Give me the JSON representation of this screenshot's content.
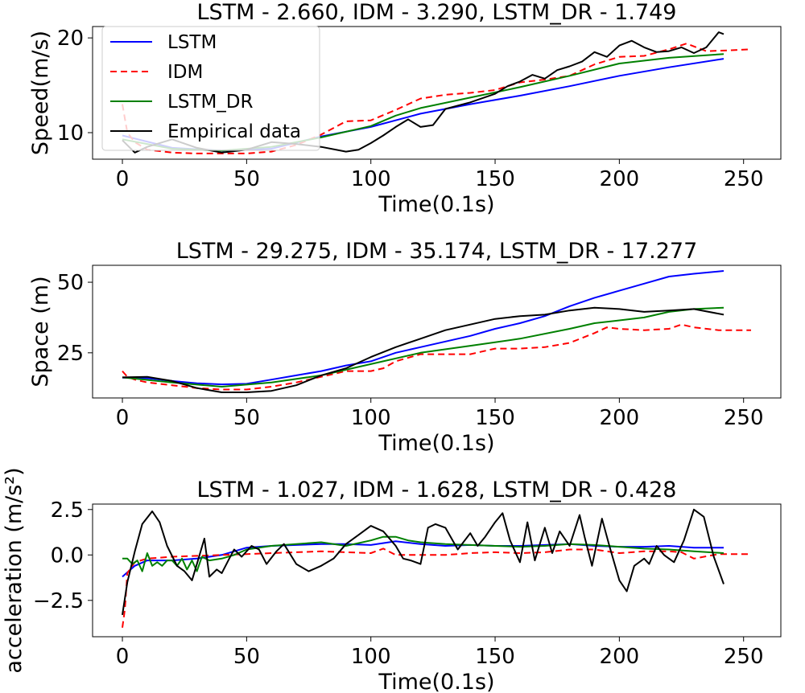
{
  "chart_data": [
    {
      "type": "line",
      "title": "LSTM - 2.660,  IDM - 3.290,  LSTM_DR - 1.749",
      "xlabel": "Time(0.1s)",
      "ylabel": "Speed(m/s)",
      "xlim": [
        -12,
        265
      ],
      "ylim": [
        7.2,
        21.2
      ],
      "xticks": [
        0,
        50,
        100,
        150,
        200,
        250
      ],
      "yticks": [
        10,
        20
      ],
      "legend": "upper-left",
      "series": [
        {
          "name": "LSTM",
          "color": "#0000ff",
          "dash": "",
          "x": [
            0,
            20,
            40,
            60,
            80,
            100,
            120,
            140,
            160,
            180,
            200,
            220,
            242
          ],
          "y": [
            9.7,
            8.4,
            8.1,
            8.3,
            9.6,
            10.6,
            12.0,
            13.0,
            13.9,
            14.9,
            16.0,
            16.9,
            17.8
          ]
        },
        {
          "name": "IDM",
          "color": "#ff0000",
          "dash": "8,5",
          "x": [
            0,
            2,
            5,
            10,
            20,
            30,
            40,
            50,
            60,
            70,
            80,
            90,
            100,
            110,
            120,
            130,
            140,
            150,
            160,
            170,
            180,
            190,
            200,
            210,
            220,
            227,
            235,
            245,
            253
          ],
          "y": [
            13.0,
            10.0,
            9.0,
            8.2,
            7.9,
            7.8,
            7.8,
            7.8,
            8.0,
            8.7,
            9.8,
            11.2,
            11.3,
            12.4,
            13.6,
            14.0,
            14.2,
            14.5,
            15.3,
            15.6,
            16.0,
            17.2,
            18.0,
            18.1,
            18.8,
            19.4,
            18.6,
            18.7,
            18.8
          ]
        },
        {
          "name": "LSTM_DR",
          "color": "#008000",
          "dash": "",
          "x": [
            0,
            20,
            40,
            60,
            80,
            100,
            110,
            120,
            140,
            160,
            180,
            200,
            220,
            242
          ],
          "y": [
            9.3,
            8.3,
            8.1,
            8.5,
            9.5,
            10.7,
            11.8,
            12.6,
            13.7,
            14.8,
            16.0,
            17.3,
            17.9,
            18.3
          ]
        },
        {
          "name": "Empirical data",
          "color": "#000000",
          "dash": "",
          "x": [
            0,
            5,
            10,
            20,
            30,
            40,
            50,
            60,
            70,
            80,
            90,
            95,
            100,
            105,
            110,
            115,
            120,
            125,
            130,
            140,
            150,
            155,
            160,
            165,
            170,
            175,
            180,
            185,
            190,
            195,
            200,
            205,
            210,
            215,
            220,
            225,
            230,
            235,
            240,
            242
          ],
          "y": [
            9.2,
            7.9,
            8.5,
            9.3,
            8.4,
            7.9,
            8.2,
            9.0,
            8.8,
            8.5,
            8.0,
            8.2,
            8.9,
            9.7,
            10.6,
            11.4,
            10.6,
            10.8,
            12.5,
            13.2,
            14.1,
            14.9,
            15.4,
            16.1,
            15.7,
            16.6,
            17.0,
            17.5,
            18.5,
            18.0,
            19.2,
            19.7,
            19.0,
            18.5,
            18.6,
            19.0,
            18.4,
            19.0,
            20.6,
            20.4
          ]
        }
      ]
    },
    {
      "type": "line",
      "title": "LSTM - 29.275,  IDM - 35.174,  LSTM_DR - 17.277",
      "xlabel": "Time(0.1s)",
      "ylabel": "Space (m)",
      "xlim": [
        -12,
        265
      ],
      "ylim": [
        9,
        56
      ],
      "xticks": [
        0,
        50,
        100,
        150,
        200,
        250
      ],
      "yticks": [
        25,
        50
      ],
      "series": [
        {
          "name": "LSTM",
          "color": "#0000ff",
          "dash": "",
          "x": [
            0,
            10,
            20,
            30,
            40,
            50,
            60,
            70,
            80,
            90,
            100,
            110,
            120,
            130,
            140,
            150,
            160,
            170,
            180,
            190,
            200,
            210,
            220,
            230,
            242
          ],
          "y": [
            16.2,
            16.0,
            15.0,
            14.2,
            13.8,
            14.0,
            15.5,
            17.0,
            18.5,
            20.5,
            22.0,
            25.0,
            27.0,
            29.0,
            31.0,
            33.5,
            35.5,
            38.0,
            41.5,
            44.5,
            47.0,
            49.5,
            52.0,
            53.0,
            54.0
          ]
        },
        {
          "name": "IDM",
          "color": "#ff0000",
          "dash": "8,5",
          "x": [
            0,
            2,
            5,
            10,
            20,
            30,
            40,
            50,
            60,
            70,
            80,
            90,
            100,
            105,
            110,
            120,
            130,
            140,
            150,
            160,
            170,
            180,
            190,
            195,
            200,
            210,
            220,
            225,
            230,
            240,
            253
          ],
          "y": [
            18.5,
            16.5,
            15.5,
            14.5,
            13.5,
            12.5,
            12.0,
            12.0,
            13.0,
            14.5,
            16.5,
            18.5,
            18.5,
            19.5,
            22.0,
            24.5,
            24.5,
            24.5,
            26.5,
            26.5,
            27.0,
            28.5,
            32.0,
            34.0,
            33.5,
            33.0,
            33.5,
            35.0,
            34.0,
            33.0,
            33.0
          ]
        },
        {
          "name": "LSTM_DR",
          "color": "#008000",
          "dash": "",
          "x": [
            0,
            20,
            40,
            60,
            80,
            100,
            120,
            140,
            160,
            180,
            190,
            200,
            210,
            220,
            230,
            242
          ],
          "y": [
            16.3,
            14.5,
            13.0,
            14.5,
            17.0,
            21.0,
            25.0,
            27.5,
            30.0,
            33.5,
            35.5,
            36.5,
            37.5,
            39.5,
            40.5,
            41.0
          ]
        },
        {
          "name": "Empirical data",
          "color": "#000000",
          "dash": "",
          "x": [
            0,
            10,
            20,
            30,
            40,
            50,
            60,
            70,
            80,
            90,
            100,
            110,
            120,
            130,
            140,
            150,
            160,
            170,
            180,
            190,
            200,
            210,
            220,
            230,
            242
          ],
          "y": [
            16.3,
            16.5,
            15.0,
            12.5,
            11.0,
            11.0,
            11.5,
            13.5,
            17.0,
            19.5,
            23.5,
            27.0,
            30.0,
            33.0,
            35.0,
            37.0,
            38.0,
            38.5,
            40.0,
            41.0,
            40.5,
            39.5,
            40.0,
            40.5,
            38.5
          ]
        }
      ]
    },
    {
      "type": "line",
      "title": "LSTM - 1.027,  IDM - 1.628,  LSTM_DR - 0.428",
      "xlabel": "Time(0.1s)",
      "ylabel": "acceleration (m/s²)",
      "xlim": [
        -12,
        265
      ],
      "ylim": [
        -4.5,
        2.8
      ],
      "xticks": [
        0,
        50,
        100,
        150,
        200,
        250
      ],
      "yticks": [
        2.5,
        0.0,
        -2.5
      ],
      "ytick_labels": [
        "2.5",
        "0.0",
        "−2.5"
      ],
      "series": [
        {
          "name": "LSTM",
          "color": "#0000ff",
          "dash": "",
          "x": [
            0,
            5,
            10,
            20,
            30,
            40,
            50,
            60,
            70,
            80,
            90,
            100,
            110,
            120,
            130,
            140,
            150,
            160,
            170,
            180,
            190,
            200,
            210,
            220,
            230,
            242
          ],
          "y": [
            -1.2,
            -0.6,
            -0.3,
            -0.3,
            -0.2,
            0.0,
            0.4,
            0.5,
            0.55,
            0.6,
            0.6,
            0.55,
            0.75,
            0.6,
            0.5,
            0.55,
            0.5,
            0.5,
            0.55,
            0.6,
            0.5,
            0.45,
            0.45,
            0.5,
            0.4,
            0.4
          ]
        },
        {
          "name": "IDM",
          "color": "#ff0000",
          "dash": "8,5",
          "x": [
            0,
            1,
            2,
            5,
            10,
            20,
            30,
            40,
            50,
            60,
            70,
            80,
            90,
            100,
            105,
            110,
            120,
            130,
            140,
            150,
            160,
            170,
            180,
            190,
            200,
            210,
            220,
            225,
            230,
            240,
            253
          ],
          "y": [
            -4.0,
            -3.0,
            -1.0,
            -0.4,
            -0.2,
            -0.1,
            -0.05,
            0.0,
            0.05,
            0.1,
            0.15,
            0.2,
            0.15,
            0.1,
            0.35,
            0.0,
            0.0,
            0.0,
            0.1,
            0.15,
            0.1,
            0.15,
            0.3,
            0.3,
            0.1,
            0.2,
            0.2,
            0.15,
            -0.2,
            0.05,
            0.05
          ]
        },
        {
          "name": "LSTM_DR",
          "color": "#008000",
          "dash": "",
          "x": [
            0,
            2,
            4,
            6,
            8,
            10,
            12,
            14,
            16,
            18,
            20,
            22,
            24,
            26,
            28,
            30,
            32,
            35,
            40,
            45,
            50,
            55,
            60,
            70,
            80,
            90,
            100,
            105,
            110,
            115,
            120,
            130,
            140,
            150,
            160,
            170,
            180,
            190,
            200,
            210,
            220,
            230,
            242
          ],
          "y": [
            -0.2,
            -0.2,
            -0.5,
            -0.3,
            -0.9,
            0.1,
            -0.6,
            -0.4,
            -0.6,
            -0.3,
            -0.3,
            -0.6,
            -0.2,
            -0.8,
            -0.3,
            -0.9,
            -0.1,
            -0.3,
            -0.2,
            0.0,
            0.3,
            0.4,
            0.5,
            0.6,
            0.7,
            0.5,
            0.8,
            1.0,
            1.0,
            0.8,
            0.7,
            0.6,
            0.55,
            0.5,
            0.45,
            0.5,
            0.6,
            0.55,
            0.45,
            0.35,
            0.3,
            0.2,
            0.1
          ]
        },
        {
          "name": "Empirical data",
          "color": "#000000",
          "dash": "",
          "x": [
            0,
            2,
            5,
            8,
            12,
            15,
            18,
            22,
            25,
            28,
            30,
            33,
            35,
            38,
            40,
            43,
            45,
            48,
            52,
            55,
            58,
            62,
            65,
            70,
            75,
            80,
            85,
            90,
            95,
            100,
            105,
            110,
            113,
            116,
            120,
            123,
            126,
            130,
            135,
            140,
            143,
            146,
            150,
            153,
            156,
            160,
            163,
            166,
            170,
            173,
            176,
            180,
            184,
            186,
            189,
            193,
            196,
            200,
            203,
            206,
            210,
            212,
            215,
            218,
            222,
            226,
            230,
            234,
            238,
            242
          ],
          "y": [
            -3.3,
            -1.5,
            0.2,
            1.7,
            2.4,
            1.8,
            0.5,
            -0.6,
            -0.9,
            -1.4,
            -0.5,
            0.9,
            -1.2,
            -0.8,
            -1.0,
            -0.2,
            0.3,
            -0.1,
            0.5,
            0.3,
            -0.5,
            0.2,
            0.6,
            -0.5,
            -0.9,
            -0.6,
            -0.2,
            0.6,
            1.1,
            1.6,
            1.3,
            0.5,
            -0.2,
            -0.3,
            -0.5,
            1.5,
            1.7,
            1.5,
            0.3,
            1.2,
            0.5,
            1.0,
            1.8,
            2.3,
            0.8,
            -0.4,
            1.8,
            -0.3,
            1.5,
            0.1,
            1.3,
            0.5,
            2.2,
            1.0,
            -0.6,
            2.0,
            0.5,
            -1.4,
            -2.0,
            -0.6,
            -0.2,
            -0.5,
            0.5,
            0.0,
            -0.4,
            0.8,
            2.5,
            2.1,
            -0.1,
            -1.6
          ]
        }
      ]
    }
  ]
}
